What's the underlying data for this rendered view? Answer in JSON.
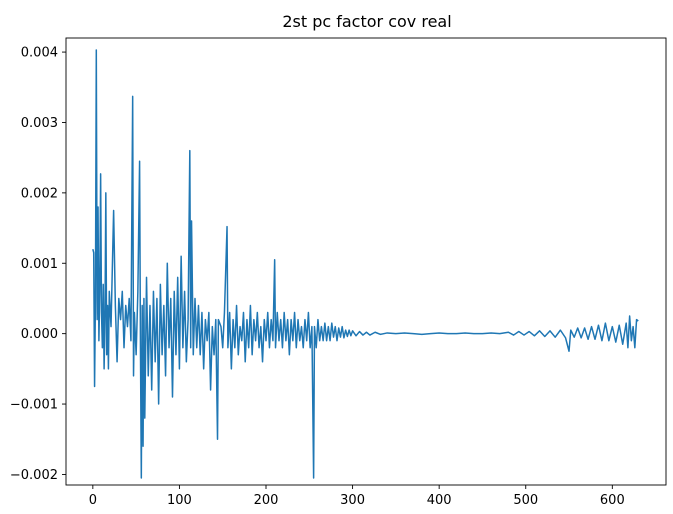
{
  "chart_data": {
    "type": "line",
    "title": "2st pc factor cov real",
    "xlabel": "",
    "ylabel": "",
    "xlim": [
      -31,
      662
    ],
    "ylim": [
      -0.00215,
      0.0042
    ],
    "grid": false,
    "legend": "none",
    "x_ticks": [
      {
        "value": 0,
        "label": "0"
      },
      {
        "value": 100,
        "label": "100"
      },
      {
        "value": 200,
        "label": "200"
      },
      {
        "value": 300,
        "label": "300"
      },
      {
        "value": 400,
        "label": "400"
      },
      {
        "value": 500,
        "label": "500"
      },
      {
        "value": 600,
        "label": "600"
      }
    ],
    "y_ticks": [
      {
        "value": -0.002,
        "label": "−0.002"
      },
      {
        "value": -0.001,
        "label": "−0.001"
      },
      {
        "value": 0.0,
        "label": "0.000"
      },
      {
        "value": 0.001,
        "label": "0.001"
      },
      {
        "value": 0.002,
        "label": "0.002"
      },
      {
        "value": 0.003,
        "label": "0.003"
      },
      {
        "value": 0.004,
        "label": "0.004"
      }
    ],
    "series": [
      {
        "name": "2st pc factor cov real",
        "color": "#1f77b4",
        "x_start": 0,
        "x_step": 1,
        "keypoints": [
          [
            0,
            0.0012
          ],
          [
            1,
            0.00115
          ],
          [
            2,
            -0.00075
          ],
          [
            3,
            0.0005
          ],
          [
            4,
            0.00403
          ],
          [
            5,
            0.0002
          ],
          [
            6,
            0.0018
          ],
          [
            7,
            -0.0001
          ],
          [
            8,
            0.0006
          ],
          [
            9,
            0.00227
          ],
          [
            10,
            0.0003
          ],
          [
            11,
            -0.0002
          ],
          [
            12,
            0.0007
          ],
          [
            13,
            -0.0005
          ],
          [
            14,
            0.0002
          ],
          [
            15,
            0.002
          ],
          [
            16,
            -0.0003
          ],
          [
            17,
            0.0004
          ],
          [
            18,
            -0.0005
          ],
          [
            19,
            0.0006
          ],
          [
            21,
            0.0001
          ],
          [
            24,
            0.00175
          ],
          [
            26,
            0.0004
          ],
          [
            28,
            -0.0004
          ],
          [
            30,
            0.0005
          ],
          [
            32,
            0.0002
          ],
          [
            34,
            0.0006
          ],
          [
            36,
            -0.0002
          ],
          [
            38,
            0.0004
          ],
          [
            40,
            0.0001
          ],
          [
            42,
            0.0005
          ],
          [
            44,
            -0.0001
          ],
          [
            46,
            0.00337
          ],
          [
            47,
            -0.0006
          ],
          [
            48,
            0.0003
          ],
          [
            50,
            -0.0003
          ],
          [
            52,
            0.0006
          ],
          [
            54,
            0.00245
          ],
          [
            55,
            -0.0002
          ],
          [
            56,
            -0.00205
          ],
          [
            57,
            0.0004
          ],
          [
            58,
            -0.0016
          ],
          [
            59,
            0.0005
          ],
          [
            60,
            -0.0012
          ],
          [
            62,
            0.0008
          ],
          [
            64,
            -0.0006
          ],
          [
            66,
            0.0004
          ],
          [
            68,
            -0.0008
          ],
          [
            70,
            0.0006
          ],
          [
            72,
            -0.0004
          ],
          [
            74,
            0.0005
          ],
          [
            76,
            -0.001
          ],
          [
            78,
            0.0007
          ],
          [
            80,
            -0.0003
          ],
          [
            82,
            0.0004
          ],
          [
            84,
            -0.0006
          ],
          [
            86,
            0.001
          ],
          [
            88,
            -0.0002
          ],
          [
            90,
            0.0005
          ],
          [
            92,
            -0.0009
          ],
          [
            94,
            0.0006
          ],
          [
            96,
            -0.0003
          ],
          [
            98,
            0.0008
          ],
          [
            100,
            -0.0005
          ],
          [
            102,
            0.0011
          ],
          [
            104,
            -0.0002
          ],
          [
            106,
            0.0006
          ],
          [
            108,
            -0.0004
          ],
          [
            110,
            0.0002
          ],
          [
            112,
            0.0026
          ],
          [
            113,
            -0.0002
          ],
          [
            114,
            0.0016
          ],
          [
            116,
            -0.0003
          ],
          [
            118,
            0.0005
          ],
          [
            120,
            -0.0002
          ],
          [
            122,
            0.0004
          ],
          [
            124,
            -0.0003
          ],
          [
            126,
            0.0003
          ],
          [
            128,
            -0.0005
          ],
          [
            130,
            0.0002
          ],
          [
            132,
            -0.0001
          ],
          [
            134,
            0.0003
          ],
          [
            136,
            -0.0008
          ],
          [
            138,
            0.0001
          ],
          [
            140,
            -0.0003
          ],
          [
            142,
            0.0002
          ],
          [
            144,
            -0.0015
          ],
          [
            145,
            0.0002
          ],
          [
            148,
            0.0001
          ],
          [
            150,
            -0.0002
          ],
          [
            152,
            0.0003
          ],
          [
            155,
            0.00152
          ],
          [
            156,
            -0.0002
          ],
          [
            158,
            0.0003
          ],
          [
            160,
            -0.0005
          ],
          [
            162,
            0.0002
          ],
          [
            164,
            -0.0002
          ],
          [
            166,
            0.0004
          ],
          [
            168,
            -0.0003
          ],
          [
            170,
            0.0001
          ],
          [
            172,
            -0.0001
          ],
          [
            174,
            0.0003
          ],
          [
            176,
            -0.0004
          ],
          [
            178,
            0.0002
          ],
          [
            180,
            -0.0002
          ],
          [
            182,
            0.0004
          ],
          [
            184,
            -0.0003
          ],
          [
            186,
            0.0002
          ],
          [
            188,
            -0.0001
          ],
          [
            190,
            0.0003
          ],
          [
            192,
            -0.0002
          ],
          [
            194,
            0.0001
          ],
          [
            196,
            -0.0004
          ],
          [
            198,
            0.0002
          ],
          [
            200,
            -0.0001
          ],
          [
            202,
            0.0003
          ],
          [
            204,
            -0.0002
          ],
          [
            206,
            0.0002
          ],
          [
            208,
            -0.0001
          ],
          [
            210,
            0.00105
          ],
          [
            211,
            -0.0002
          ],
          [
            213,
            0.0003
          ],
          [
            215,
            -0.0001
          ],
          [
            217,
            0.0002
          ],
          [
            219,
            -0.0002
          ],
          [
            221,
            0.0003
          ],
          [
            223,
            -0.0001
          ],
          [
            225,
            0.0002
          ],
          [
            227,
            -0.0003
          ],
          [
            229,
            0.0002
          ],
          [
            231,
            -0.0001
          ],
          [
            233,
            0.0003
          ],
          [
            235,
            -0.0002
          ],
          [
            237,
            0.0002
          ],
          [
            239,
            -0.0001
          ],
          [
            241,
            0.0001
          ],
          [
            243,
            -0.0002
          ],
          [
            245,
            0.0002
          ],
          [
            247,
            -0.0001
          ],
          [
            249,
            0.0003
          ],
          [
            251,
            -0.0002
          ],
          [
            253,
            0.0001
          ],
          [
            255,
            -0.00205
          ],
          [
            256,
            0.0001
          ],
          [
            258,
            -0.0002
          ],
          [
            260,
            0.0002
          ],
          [
            262,
            -0.0001
          ],
          [
            264,
            0.0001
          ],
          [
            266,
            -0.0001
          ],
          [
            268,
            0.00015
          ],
          [
            270,
            -0.0001
          ],
          [
            272,
            0.0001
          ],
          [
            274,
            -0.0001
          ],
          [
            276,
            0.00015
          ],
          [
            278,
            -5e-05
          ],
          [
            280,
            0.0001
          ],
          [
            282,
            -0.0001
          ],
          [
            284,
            8e-05
          ],
          [
            286,
            -5e-05
          ],
          [
            288,
            0.0001
          ],
          [
            290,
            -6e-05
          ],
          [
            292,
            5e-05
          ],
          [
            294,
            -4e-05
          ],
          [
            296,
            5e-05
          ],
          [
            298,
            -3e-05
          ],
          [
            300,
            4e-05
          ],
          [
            304,
            -3e-05
          ],
          [
            308,
            3e-05
          ],
          [
            312,
            -2e-05
          ],
          [
            316,
            2e-05
          ],
          [
            320,
            -2e-05
          ],
          [
            326,
            2e-05
          ],
          [
            332,
            -1e-05
          ],
          [
            340,
            1e-05
          ],
          [
            350,
            0.0
          ],
          [
            360,
            1e-05
          ],
          [
            370,
            0.0
          ],
          [
            380,
            -1e-05
          ],
          [
            390,
            0.0
          ],
          [
            400,
            1e-05
          ],
          [
            410,
            0.0
          ],
          [
            420,
            0.0
          ],
          [
            430,
            1e-05
          ],
          [
            440,
            0.0
          ],
          [
            450,
            0.0
          ],
          [
            460,
            1e-05
          ],
          [
            470,
            0.0
          ],
          [
            480,
            2e-05
          ],
          [
            486,
            -2e-05
          ],
          [
            492,
            3e-05
          ],
          [
            498,
            -2e-05
          ],
          [
            504,
            3e-05
          ],
          [
            510,
            -3e-05
          ],
          [
            516,
            4e-05
          ],
          [
            522,
            -4e-05
          ],
          [
            528,
            4e-05
          ],
          [
            534,
            -5e-05
          ],
          [
            540,
            5e-05
          ],
          [
            546,
            -6e-05
          ],
          [
            550,
            -0.00025
          ],
          [
            552,
            5e-05
          ],
          [
            556,
            -5e-05
          ],
          [
            560,
            8e-05
          ],
          [
            564,
            -6e-05
          ],
          [
            568,
            8e-05
          ],
          [
            572,
            -8e-05
          ],
          [
            576,
            0.0001
          ],
          [
            580,
            -8e-05
          ],
          [
            584,
            0.00012
          ],
          [
            588,
            -0.0001
          ],
          [
            592,
            0.00015
          ],
          [
            596,
            -0.0001
          ],
          [
            600,
            0.0001
          ],
          [
            604,
            -0.00012
          ],
          [
            608,
            0.00012
          ],
          [
            612,
            -0.00015
          ],
          [
            616,
            0.00015
          ],
          [
            618,
            -0.0002
          ],
          [
            620,
            0.00025
          ],
          [
            622,
            -0.0001
          ],
          [
            624,
            0.0001
          ],
          [
            626,
            -0.0002
          ],
          [
            628,
            0.0002
          ],
          [
            630,
            0.00018
          ]
        ]
      }
    ]
  }
}
